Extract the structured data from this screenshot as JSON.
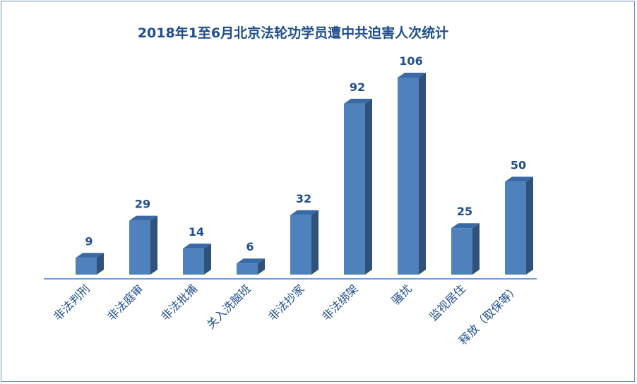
{
  "chart_data": {
    "type": "bar",
    "title": "2018年1至6月北京法轮功学员遭中共迫害人次统计",
    "categories": [
      "非法判刑",
      "非法庭审",
      "非法批捕",
      "关入洗脑班",
      "非法抄家",
      "非法绑架",
      "骚扰",
      "监视居住",
      "释放（取保等）"
    ],
    "values": [
      9,
      29,
      14,
      6,
      32,
      92,
      106,
      25,
      50
    ],
    "ylim": [
      0,
      106
    ],
    "grid": false,
    "legend": "none",
    "colors": {
      "bar_front": "#4f81bd",
      "bar_side": "#2f517a",
      "bar_top": "#3a6aa6",
      "axis": "#6f9fd0",
      "text": "#1f4e8c"
    }
  }
}
